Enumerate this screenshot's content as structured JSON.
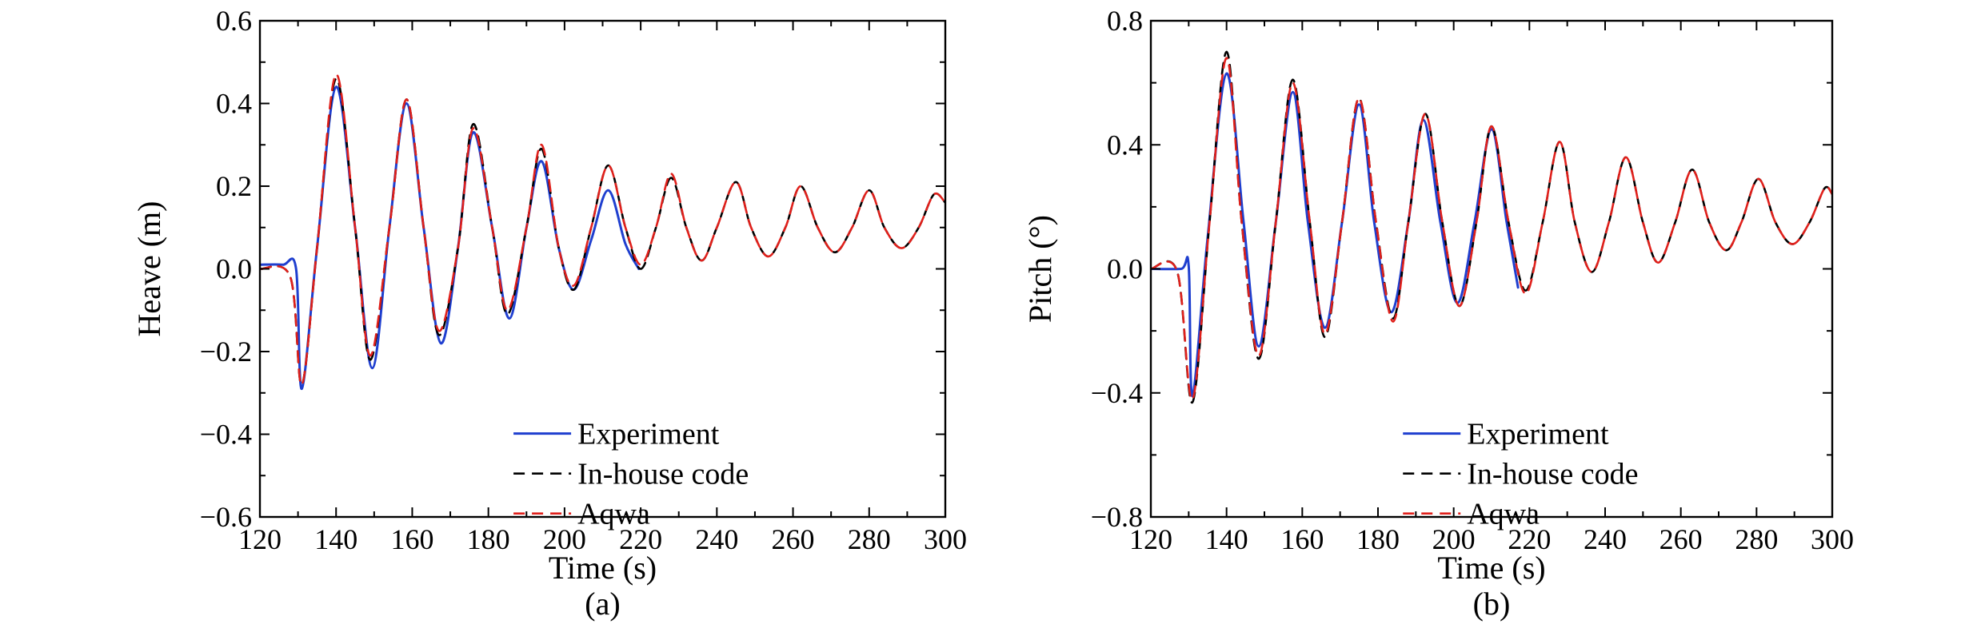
{
  "chart_data": [
    {
      "type": "line",
      "panel_label": "(a)",
      "xlabel": "Time (s)",
      "ylabel": "Heave (m)",
      "xlim": [
        120,
        300
      ],
      "ylim": [
        -0.6,
        0.6
      ],
      "xticks": [
        120,
        140,
        160,
        180,
        200,
        220,
        240,
        260,
        280,
        300
      ],
      "yticks": [
        -0.6,
        -0.4,
        -0.2,
        0.0,
        0.2,
        0.4,
        0.6
      ],
      "xtick_labels": [
        "120",
        "140",
        "160",
        "180",
        "200",
        "220",
        "240",
        "260",
        "280",
        "300"
      ],
      "ytick_labels": [
        "−0.6",
        "−0.4",
        "−0.2",
        "0.0",
        "0.2",
        "0.4",
        "0.6"
      ],
      "legend_position": "bottom-right",
      "series": [
        {
          "name": "Experiment",
          "color": "#1f3fcf",
          "dash": "solid",
          "x": [
            120,
            126,
            129.5,
            131,
            135,
            140,
            145,
            149.5,
            154,
            158.5,
            163,
            167.5,
            172,
            176,
            181,
            185.5,
            190,
            194,
            198.5,
            202.5,
            207,
            211.5,
            216,
            219.5
          ],
          "y": [
            0.01,
            0.01,
            0.0,
            -0.29,
            0.05,
            0.44,
            0.1,
            -0.24,
            0.1,
            0.4,
            0.1,
            -0.18,
            0.05,
            0.33,
            0.1,
            -0.12,
            0.1,
            0.26,
            0.05,
            -0.05,
            0.07,
            0.19,
            0.06,
            0.0
          ]
        },
        {
          "name": "In-house code",
          "color": "#000000",
          "dash": "dashed",
          "x": [
            120,
            128,
            131,
            135,
            140,
            145,
            149,
            154,
            158.5,
            163,
            167,
            172,
            176,
            181,
            185,
            190,
            194,
            198.5,
            202.5,
            207,
            211.5,
            216,
            220,
            224,
            228,
            232,
            236,
            240,
            245,
            249,
            253.5,
            258,
            262,
            266.5,
            271,
            275.5,
            280,
            284,
            288.5,
            293,
            297,
            300
          ],
          "y": [
            0.0,
            -0.02,
            -0.28,
            0.05,
            0.46,
            0.1,
            -0.22,
            0.1,
            0.41,
            0.1,
            -0.16,
            0.05,
            0.35,
            0.1,
            -0.11,
            0.1,
            0.29,
            0.05,
            -0.05,
            0.1,
            0.25,
            0.1,
            0.0,
            0.1,
            0.22,
            0.1,
            0.02,
            0.1,
            0.21,
            0.1,
            0.03,
            0.1,
            0.2,
            0.1,
            0.04,
            0.1,
            0.19,
            0.1,
            0.05,
            0.1,
            0.18,
            0.16
          ]
        },
        {
          "name": "Aqwa",
          "color": "#e0201b",
          "dash": "dashed",
          "x": [
            120,
            128,
            131,
            135,
            140,
            145,
            149,
            154,
            158.5,
            163,
            167,
            172,
            176,
            181,
            185,
            190,
            194,
            198.5,
            202.5,
            207,
            211.5,
            216,
            220,
            224,
            228,
            232,
            236,
            240,
            245,
            249,
            253.5,
            258,
            262,
            266.5,
            271,
            275.5,
            280,
            284,
            288.5,
            293,
            297,
            300
          ],
          "y": [
            0.0,
            -0.02,
            -0.28,
            0.05,
            0.47,
            0.1,
            -0.21,
            0.1,
            0.41,
            0.1,
            -0.15,
            0.05,
            0.34,
            0.1,
            -0.1,
            0.1,
            0.3,
            0.05,
            -0.04,
            0.1,
            0.25,
            0.1,
            0.01,
            0.1,
            0.23,
            0.1,
            0.02,
            0.1,
            0.21,
            0.1,
            0.03,
            0.1,
            0.2,
            0.1,
            0.04,
            0.1,
            0.19,
            0.1,
            0.05,
            0.1,
            0.18,
            0.16
          ]
        }
      ]
    },
    {
      "type": "line",
      "panel_label": "(b)",
      "xlabel": "Time (s)",
      "ylabel": "Pitch (°)",
      "xlim": [
        120,
        300
      ],
      "ylim": [
        -0.8,
        0.8
      ],
      "xticks": [
        120,
        140,
        160,
        180,
        200,
        220,
        240,
        260,
        280,
        300
      ],
      "yticks": [
        -0.8,
        -0.4,
        0.0,
        0.4,
        0.8
      ],
      "xtick_labels": [
        "120",
        "140",
        "160",
        "180",
        "200",
        "220",
        "240",
        "260",
        "280",
        "300"
      ],
      "ytick_labels": [
        "−0.8",
        "−0.4",
        "0.0",
        "0.4",
        "0.8"
      ],
      "legend_position": "bottom-right",
      "series": [
        {
          "name": "Experiment",
          "color": "#1f3fcf",
          "dash": "solid",
          "x": [
            120,
            128,
            130,
            131,
            135,
            140,
            144.5,
            148.5,
            153,
            157.5,
            161.5,
            166,
            170.5,
            175,
            179,
            183.5,
            188,
            192,
            196.5,
            201,
            205.5,
            210,
            214,
            217
          ],
          "y": [
            0.0,
            0.0,
            0.01,
            -0.41,
            0.1,
            0.63,
            0.15,
            -0.25,
            0.15,
            0.57,
            0.15,
            -0.19,
            0.15,
            0.53,
            0.15,
            -0.14,
            0.15,
            0.48,
            0.15,
            -0.11,
            0.15,
            0.45,
            0.15,
            -0.06
          ]
        },
        {
          "name": "In-house code",
          "color": "#000000",
          "dash": "dashed",
          "x": [
            120,
            127,
            131,
            135.5,
            140,
            144,
            148.5,
            153,
            157.5,
            162,
            166,
            170.5,
            175,
            179.5,
            184,
            188,
            192.5,
            197,
            201.5,
            206,
            210,
            214.5,
            219,
            223.5,
            228,
            232,
            236.5,
            241,
            245.5,
            250,
            254,
            258.5,
            263,
            267.5,
            272,
            276,
            280.5,
            285,
            289.5,
            294,
            298,
            300
          ],
          "y": [
            0.0,
            -0.01,
            -0.43,
            0.15,
            0.7,
            0.15,
            -0.29,
            0.15,
            0.61,
            0.15,
            -0.22,
            0.15,
            0.55,
            0.15,
            -0.16,
            0.15,
            0.5,
            0.15,
            -0.12,
            0.15,
            0.46,
            0.15,
            -0.07,
            0.15,
            0.41,
            0.15,
            -0.01,
            0.15,
            0.36,
            0.15,
            0.02,
            0.15,
            0.32,
            0.15,
            0.06,
            0.15,
            0.29,
            0.15,
            0.08,
            0.15,
            0.26,
            0.24
          ]
        },
        {
          "name": "Aqwa",
          "color": "#e0201b",
          "dash": "dashed",
          "x": [
            120,
            127,
            131,
            135.5,
            140,
            144,
            148.5,
            153,
            157.5,
            162,
            166,
            170.5,
            175,
            179.5,
            184,
            188,
            192.5,
            197,
            201.5,
            206,
            210,
            214.5,
            219,
            223.5,
            228,
            232,
            236.5,
            241,
            245.5,
            250,
            254,
            258.5,
            263,
            267.5,
            272,
            276,
            280.5,
            285,
            289.5,
            294,
            298,
            300
          ],
          "y": [
            0.0,
            -0.01,
            -0.42,
            0.15,
            0.68,
            0.15,
            -0.28,
            0.15,
            0.6,
            0.15,
            -0.21,
            0.15,
            0.55,
            0.15,
            -0.17,
            0.15,
            0.5,
            0.15,
            -0.12,
            0.15,
            0.46,
            0.15,
            -0.08,
            0.15,
            0.41,
            0.15,
            -0.01,
            0.15,
            0.36,
            0.15,
            0.02,
            0.15,
            0.32,
            0.15,
            0.06,
            0.15,
            0.29,
            0.15,
            0.08,
            0.15,
            0.26,
            0.24
          ]
        }
      ]
    }
  ]
}
